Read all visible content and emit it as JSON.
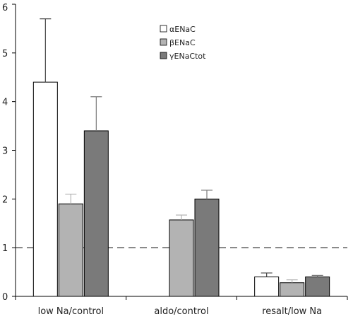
{
  "chart_data": {
    "type": "bar",
    "categories": [
      "low Na/control",
      "aldo/control",
      "resalt/low Na"
    ],
    "series": [
      {
        "name": "αENaC",
        "values": [
          4.4,
          null,
          0.4
        ],
        "errors": [
          1.3,
          null,
          0.08
        ],
        "color": "#ffffff"
      },
      {
        "name": "βENaC",
        "values": [
          1.9,
          1.57,
          0.28
        ],
        "errors": [
          0.2,
          0.1,
          0.06
        ],
        "color": "#b3b3b3"
      },
      {
        "name": "γENaCtot",
        "values": [
          3.4,
          2.0,
          0.4
        ],
        "errors": [
          0.7,
          0.18,
          0.03
        ],
        "color": "#7a7a7a"
      }
    ],
    "ylim": [
      0,
      6
    ],
    "yticks": [
      "0",
      "1",
      "2",
      "3",
      "4",
      "5",
      "6"
    ],
    "reference_line": 1,
    "legend_position": "top-center",
    "title": "",
    "xlabel": "",
    "ylabel": ""
  }
}
